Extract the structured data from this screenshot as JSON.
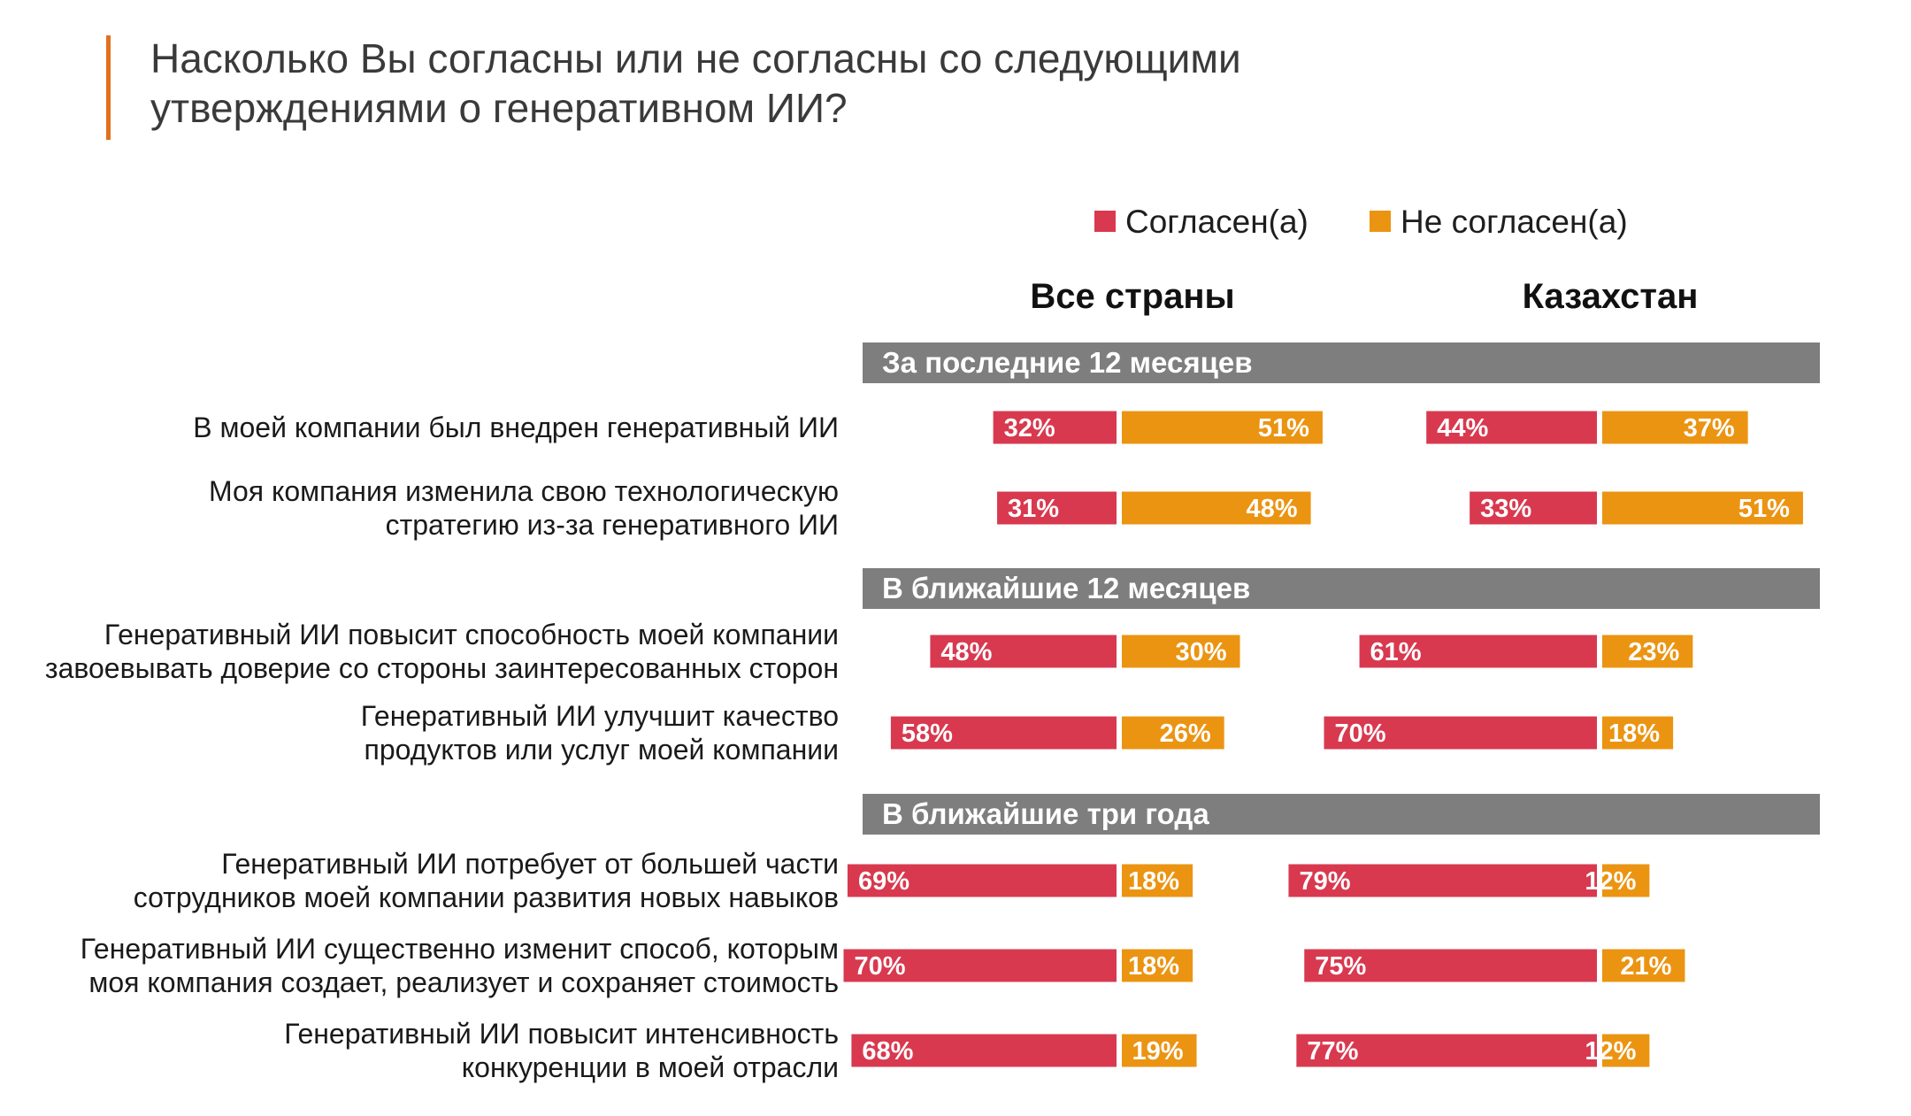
{
  "title_lines": [
    "Насколько Вы согласны или не согласны со следующими",
    "утверждениями о генеративном ИИ?"
  ],
  "colors": {
    "agree": "#d8394f",
    "disagree": "#eb9412",
    "section_band": "#7e7e7e",
    "title_accent": "#e0701e"
  },
  "chart_data": {
    "type": "bar",
    "orientation": "horizontal",
    "stacked": "diverging",
    "legend": {
      "position": "top",
      "entries": [
        "Согласен(а)",
        "Не согласен(а)"
      ]
    },
    "panels": [
      "Все страны",
      "Казахстан"
    ],
    "series": [
      {
        "name": "Согласен(а)",
        "color": "#d8394f"
      },
      {
        "name": "Не согласен(а)",
        "color": "#eb9412"
      }
    ],
    "value_unit": "%",
    "sections": [
      {
        "title": "За последние 12 месяцев",
        "rows": [
          {
            "label_lines": [
              "В моей компании был внедрен генеративный ИИ"
            ],
            "values": [
              {
                "agree": 32,
                "disagree": 51
              },
              {
                "agree": 44,
                "disagree": 37
              }
            ]
          },
          {
            "label_lines": [
              "Моя компания изменила свою технологическую",
              "стратегию из-за генеративного ИИ"
            ],
            "values": [
              {
                "agree": 31,
                "disagree": 48
              },
              {
                "agree": 33,
                "disagree": 51
              }
            ]
          }
        ]
      },
      {
        "title": "В ближайшие 12 месяцев",
        "rows": [
          {
            "label_lines": [
              "Генеративный ИИ повысит способность моей компании",
              "завоевывать доверие со стороны заинтересованных сторон"
            ],
            "values": [
              {
                "agree": 48,
                "disagree": 30
              },
              {
                "agree": 61,
                "disagree": 23
              }
            ]
          },
          {
            "label_lines": [
              "Генеративный ИИ улучшит качество",
              "продуктов или услуг моей компании"
            ],
            "values": [
              {
                "agree": 58,
                "disagree": 26
              },
              {
                "agree": 70,
                "disagree": 18
              }
            ]
          }
        ]
      },
      {
        "title": "В ближайшие три года",
        "rows": [
          {
            "label_lines": [
              "Генеративный ИИ потребует от большей части",
              "сотрудников моей компании развития новых навыков"
            ],
            "values": [
              {
                "agree": 69,
                "disagree": 18
              },
              {
                "agree": 79,
                "disagree": 12
              }
            ]
          },
          {
            "label_lines": [
              "Генеративный ИИ существенно изменит способ, которым",
              "моя компания создает, реализует и сохраняет стоимость"
            ],
            "values": [
              {
                "agree": 70,
                "disagree": 18
              },
              {
                "agree": 75,
                "disagree": 21
              }
            ]
          },
          {
            "label_lines": [
              "Генеративный ИИ повысит интенсивность",
              "конкуренции в моей отрасли"
            ],
            "values": [
              {
                "agree": 68,
                "disagree": 19
              },
              {
                "agree": 77,
                "disagree": 12
              }
            ]
          }
        ]
      }
    ]
  }
}
